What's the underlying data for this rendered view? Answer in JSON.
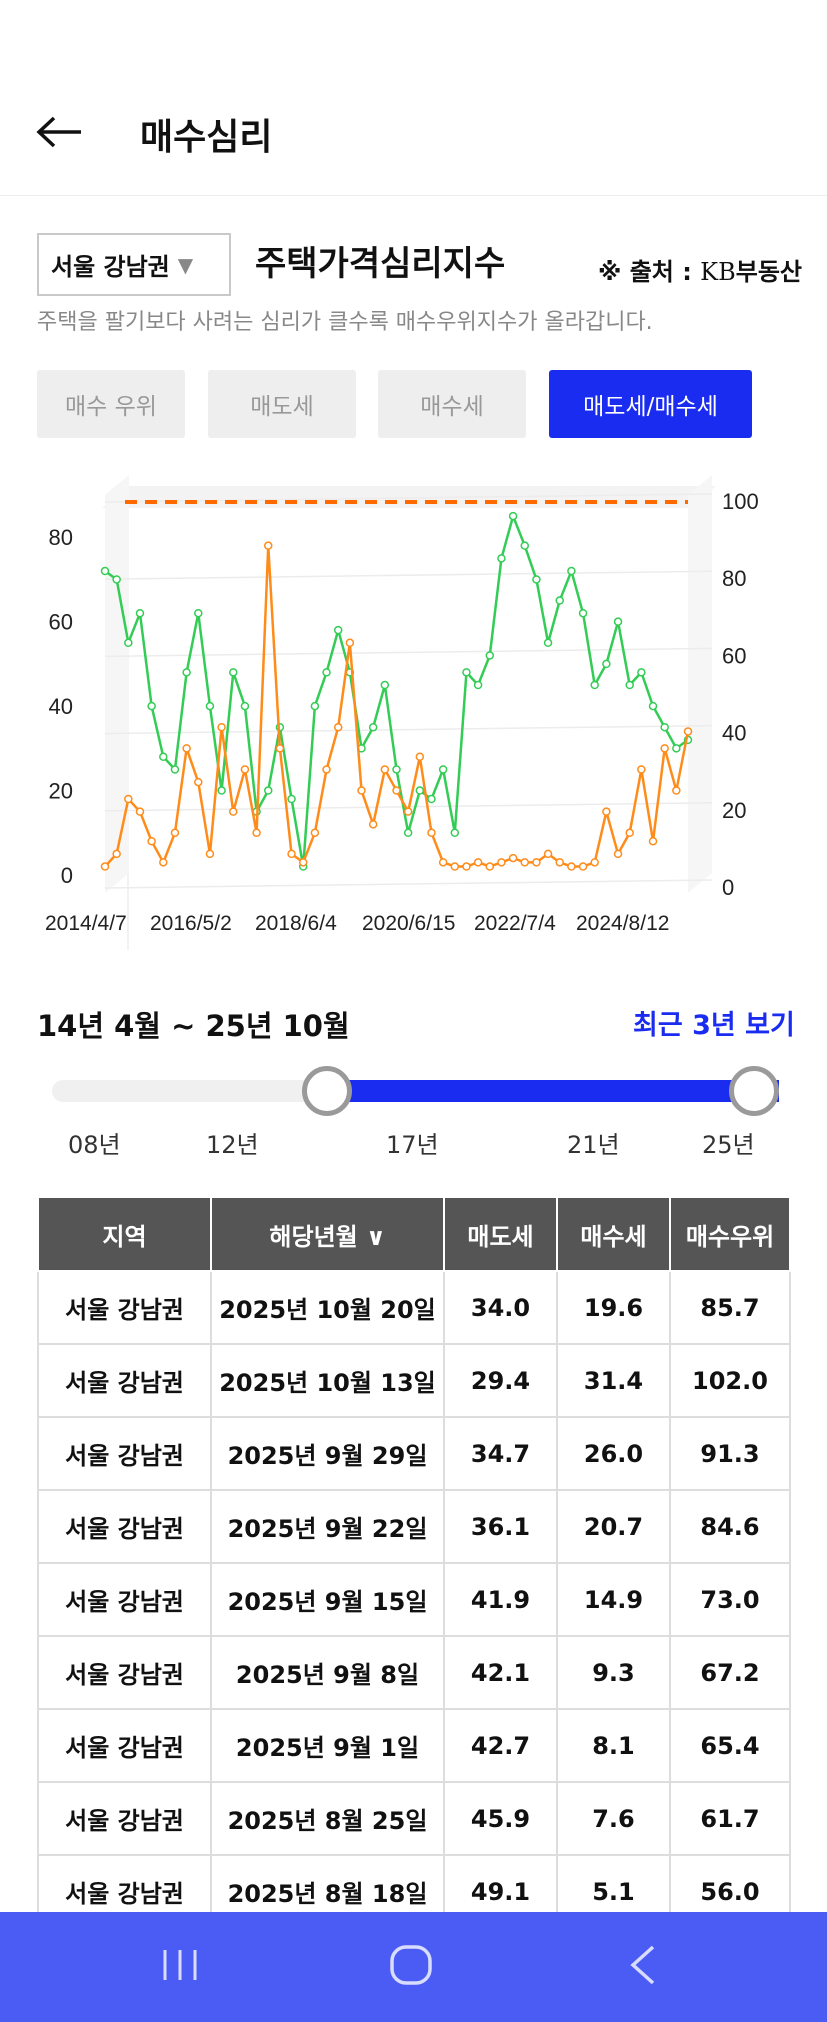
{
  "header": {
    "title": "매수심리"
  },
  "filter": {
    "region": "서울 강남권",
    "chart_title": "주택가격심리지수",
    "source_prefix": "※ 출처 :",
    "source_kb": "KB",
    "source_name": "부동산",
    "description": "주택을 팔기보다 사려는 심리가 클수록 매수우위지수가 올라갑니다."
  },
  "tabs": [
    {
      "label": "매수 우위"
    },
    {
      "label": "매도세"
    },
    {
      "label": "매수세"
    },
    {
      "label": "매도세/매수세",
      "active": true
    }
  ],
  "chart_data": {
    "type": "line",
    "x_tick_labels": [
      "2014/4/7",
      "2016/5/2",
      "2018/6/4",
      "2020/6/15",
      "2022/7/4",
      "2024/8/12"
    ],
    "left_axis_ticks": [
      "0",
      "20",
      "40",
      "60",
      "80"
    ],
    "right_axis_ticks": [
      "0",
      "20",
      "40",
      "60",
      "80",
      "100"
    ],
    "left_ylim": [
      0,
      90
    ],
    "right_ylim": [
      0,
      100
    ],
    "reference_line": {
      "value": 100,
      "axis": "right",
      "style": "dashed"
    },
    "grid": true,
    "colors": {
      "series_green": "#33cc55",
      "series_orange": "#ff8c1a",
      "reference": "#ff6a00"
    },
    "series": [
      {
        "color_key": "series_green",
        "x_fraction": [
          0,
          0.02,
          0.04,
          0.06,
          0.08,
          0.1,
          0.12,
          0.14,
          0.16,
          0.18,
          0.2,
          0.22,
          0.24,
          0.26,
          0.28,
          0.3,
          0.32,
          0.34,
          0.36,
          0.38,
          0.4,
          0.42,
          0.44,
          0.46,
          0.48,
          0.5,
          0.52,
          0.54,
          0.56,
          0.58,
          0.6,
          0.62,
          0.64,
          0.66,
          0.68,
          0.7,
          0.72,
          0.74,
          0.76,
          0.78,
          0.8,
          0.82,
          0.84,
          0.86,
          0.88,
          0.9,
          0.92,
          0.94,
          0.96,
          0.98,
          1.0
        ],
        "values": [
          72,
          70,
          55,
          62,
          40,
          28,
          25,
          48,
          62,
          40,
          20,
          48,
          40,
          15,
          20,
          35,
          18,
          2,
          40,
          48,
          58,
          48,
          30,
          35,
          45,
          25,
          10,
          20,
          18,
          25,
          10,
          48,
          45,
          52,
          75,
          85,
          78,
          70,
          55,
          65,
          72,
          62,
          45,
          50,
          60,
          45,
          48,
          40,
          35,
          30,
          32
        ]
      },
      {
        "color_key": "series_orange",
        "x_fraction": [
          0,
          0.02,
          0.04,
          0.06,
          0.08,
          0.1,
          0.12,
          0.14,
          0.16,
          0.18,
          0.2,
          0.22,
          0.24,
          0.26,
          0.28,
          0.3,
          0.32,
          0.34,
          0.36,
          0.38,
          0.4,
          0.42,
          0.44,
          0.46,
          0.48,
          0.5,
          0.52,
          0.54,
          0.56,
          0.58,
          0.6,
          0.62,
          0.64,
          0.66,
          0.68,
          0.7,
          0.72,
          0.74,
          0.76,
          0.78,
          0.8,
          0.82,
          0.84,
          0.86,
          0.88,
          0.9,
          0.92,
          0.94,
          0.96,
          0.98,
          1.0
        ],
        "values": [
          2,
          5,
          18,
          15,
          8,
          3,
          10,
          30,
          22,
          5,
          35,
          15,
          25,
          10,
          78,
          30,
          5,
          3,
          10,
          25,
          35,
          55,
          20,
          12,
          25,
          20,
          15,
          28,
          10,
          3,
          2,
          2,
          3,
          2,
          3,
          4,
          3,
          3,
          5,
          3,
          2,
          2,
          3,
          15,
          5,
          10,
          25,
          8,
          30,
          20,
          34
        ]
      }
    ]
  },
  "range": {
    "title": "14년 4월 ~ 25년 10월",
    "recent_label": "최근 3년 보기",
    "ticks": [
      "08년",
      "12년",
      "17년",
      "21년",
      "25년"
    ],
    "selected_from": "14년 4월",
    "selected_to": "25년 10월"
  },
  "table": {
    "headers": [
      "지역",
      "해당년월",
      "매도세",
      "매수세",
      "매수우위"
    ],
    "sort_icon": "chevron-down-icon",
    "rows": [
      [
        "서울 강남권",
        "2025년 10월 20일",
        "34.0",
        "19.6",
        "85.7"
      ],
      [
        "서울 강남권",
        "2025년 10월 13일",
        "29.4",
        "31.4",
        "102.0"
      ],
      [
        "서울 강남권",
        "2025년 9월 29일",
        "34.7",
        "26.0",
        "91.3"
      ],
      [
        "서울 강남권",
        "2025년 9월 22일",
        "36.1",
        "20.7",
        "84.6"
      ],
      [
        "서울 강남권",
        "2025년 9월 15일",
        "41.9",
        "14.9",
        "73.0"
      ],
      [
        "서울 강남권",
        "2025년 9월 8일",
        "42.1",
        "9.3",
        "67.2"
      ],
      [
        "서울 강남권",
        "2025년 9월 1일",
        "42.7",
        "8.1",
        "65.4"
      ],
      [
        "서울 강남권",
        "2025년 8월 25일",
        "45.9",
        "7.6",
        "61.7"
      ],
      [
        "서울 강남권",
        "2025년 8월 18일",
        "49.1",
        "5.1",
        "56.0"
      ]
    ]
  },
  "navbar": {
    "color": "#4b5cf5",
    "icons": [
      "recent-apps-icon",
      "home-icon",
      "back-icon"
    ]
  }
}
